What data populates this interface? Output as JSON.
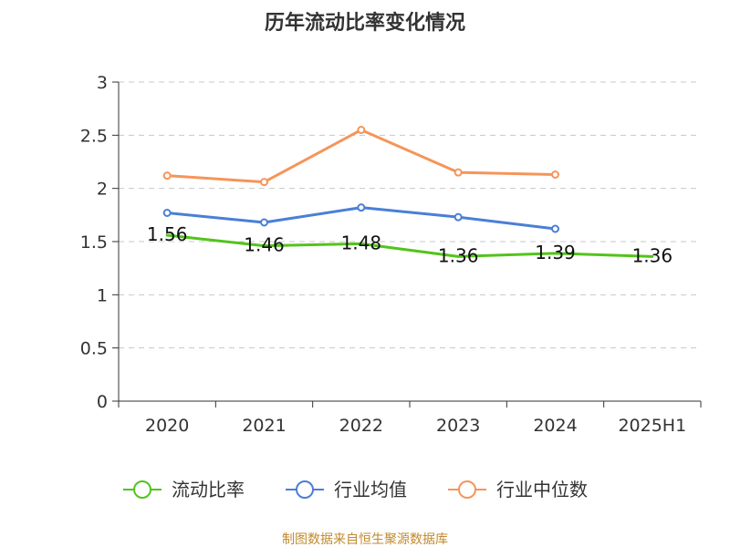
{
  "chart_data": {
    "type": "line",
    "title": "历年流动比率变化情况",
    "categories": [
      "2020",
      "2021",
      "2022",
      "2023",
      "2024",
      "2025H1"
    ],
    "ylim": [
      0,
      3
    ],
    "yticks": [
      "0",
      "0.5",
      "1",
      "1.5",
      "2",
      "2.5",
      "3"
    ],
    "grid": true,
    "legend_position": "bottom",
    "series": [
      {
        "name": "流动比率",
        "color": "#52c41a",
        "values": [
          1.56,
          1.46,
          1.48,
          1.36,
          1.39,
          1.36
        ],
        "labels": [
          "1.56",
          "1.46",
          "1.48",
          "1.36",
          "1.39",
          "1.36"
        ],
        "markers": false
      },
      {
        "name": "行业均值",
        "color": "#4a7fd6",
        "values": [
          1.77,
          1.68,
          1.82,
          1.73,
          1.62,
          null
        ],
        "markers": true
      },
      {
        "name": "行业中位数",
        "color": "#f5955a",
        "values": [
          2.12,
          2.06,
          2.55,
          2.15,
          2.13,
          null
        ],
        "markers": true
      }
    ],
    "source": "制图数据来自恒生聚源数据库"
  }
}
